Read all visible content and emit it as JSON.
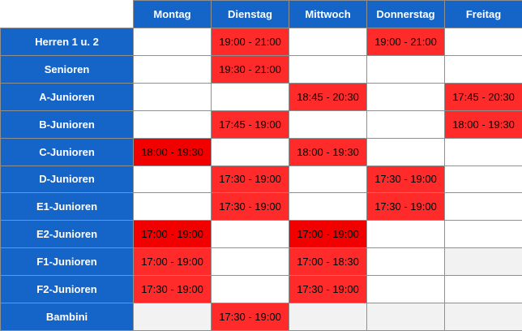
{
  "days": [
    "Montag",
    "Dienstag",
    "Mittwoch",
    "Donnerstag",
    "Freitag"
  ],
  "colors": {
    "header_blue": "#1565c8",
    "slot_red": "#ff2b2b",
    "slot_dark_red": "#f20000",
    "empty_white": "#ffffff",
    "empty_grey": "#f2f2f2"
  },
  "rows": [
    {
      "team": "Herren 1 u. 2",
      "slots": [
        "",
        "19:00 - 21:00",
        "",
        "19:00 - 21:00",
        ""
      ]
    },
    {
      "team": "Senioren",
      "slots": [
        "",
        "19:30 - 21:00",
        "",
        "",
        ""
      ]
    },
    {
      "team": "A-Junioren",
      "slots": [
        "",
        "",
        "18:45 - 20:30",
        "",
        "17:45 - 20:30"
      ]
    },
    {
      "team": "B-Junioren",
      "slots": [
        "",
        "17:45 - 19:00",
        "",
        "",
        "18:00 - 19:30"
      ]
    },
    {
      "team": "C-Junioren",
      "slots": [
        "18:00 - 19:30",
        "",
        "18:00 - 19:30",
        "",
        ""
      ]
    },
    {
      "team": "D-Junioren",
      "slots": [
        "",
        "17:30 - 19:00",
        "",
        "17:30 - 19:00",
        ""
      ]
    },
    {
      "team": "E1-Junioren",
      "slots": [
        "",
        "17:30 - 19:00",
        "",
        "17:30 - 19:00",
        ""
      ]
    },
    {
      "team": "E2-Junioren",
      "slots": [
        "17:00 - 19:00",
        "",
        "17:00 - 19:00",
        "",
        ""
      ]
    },
    {
      "team": "F1-Junioren",
      "slots": [
        "17:00 - 19:00",
        "",
        "17:00 - 18:30",
        "",
        ""
      ]
    },
    {
      "team": "F2-Junioren",
      "slots": [
        "17:30 - 19:00",
        "",
        "17:30 - 19:00",
        "",
        ""
      ]
    },
    {
      "team": "Bambini",
      "slots": [
        "",
        "17:30 - 19:00",
        "",
        "",
        ""
      ]
    }
  ]
}
